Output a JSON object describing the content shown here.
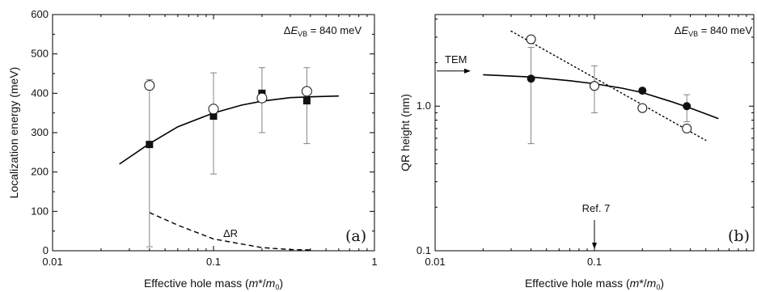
{
  "chart_data": [
    {
      "type": "scatter",
      "panel_label": "(a)",
      "xlabel": {
        "pre": "Effective hole mass  (",
        "m": "m",
        "star": "*/",
        "m0": "m",
        "sub": "0",
        "post": ")"
      },
      "ylabel": "Localization energy  (meV)",
      "xscale": "log",
      "xlim": [
        0.01,
        1
      ],
      "ylim": [
        0,
        600
      ],
      "xticks": [
        {
          "value": 0.01,
          "label": "0.01"
        },
        {
          "value": 0.1,
          "label": "0.1"
        },
        {
          "value": 1,
          "label": "1"
        }
      ],
      "yticks": [
        {
          "value": 0,
          "label": "0"
        },
        {
          "value": 100,
          "label": "100"
        },
        {
          "value": 200,
          "label": "200"
        },
        {
          "value": 300,
          "label": "300"
        },
        {
          "value": 400,
          "label": "400"
        },
        {
          "value": 500,
          "label": "500"
        },
        {
          "value": 600,
          "label": "600"
        }
      ],
      "annotation": {
        "pre": "Δ",
        "E": "E",
        "sub": "VB",
        "post": " = 840 meV"
      },
      "dashed_label": "ΔR",
      "series": [
        {
          "marker": "filled-square",
          "points": [
            {
              "x": 0.04,
              "y": 270,
              "err": [
                10,
                435
              ]
            },
            {
              "x": 0.1,
              "y": 342,
              "err": [
                195,
                452
              ]
            },
            {
              "x": 0.2,
              "y": 400,
              "err": [
                300,
                465
              ]
            },
            {
              "x": 0.38,
              "y": 381,
              "err": [
                272,
                465
              ]
            }
          ]
        },
        {
          "marker": "open-circle",
          "points": [
            {
              "x": 0.04,
              "y": 420
            },
            {
              "x": 0.1,
              "y": 360
            },
            {
              "x": 0.2,
              "y": 388
            },
            {
              "x": 0.38,
              "y": 405
            }
          ]
        },
        {
          "style": "solid-line",
          "points": [
            [
              0.026,
              220
            ],
            [
              0.04,
              272
            ],
            [
              0.06,
              315
            ],
            [
              0.1,
              350
            ],
            [
              0.15,
              370
            ],
            [
              0.2,
              380
            ],
            [
              0.3,
              389
            ],
            [
              0.4,
              391
            ],
            [
              0.6,
              393
            ]
          ]
        },
        {
          "style": "dashed-line",
          "points": [
            [
              0.04,
              97
            ],
            [
              0.06,
              65
            ],
            [
              0.1,
              30
            ],
            [
              0.15,
              17
            ],
            [
              0.2,
              8
            ],
            [
              0.3,
              3
            ],
            [
              0.4,
              2
            ]
          ]
        }
      ]
    },
    {
      "type": "scatter",
      "panel_label": "(b)",
      "xlabel": {
        "pre": "Effective hole mass (",
        "m": "m",
        "star": "*/",
        "m0": "m",
        "sub": "0",
        "post": ")"
      },
      "ylabel": "QR height (nm)",
      "xscale": "log",
      "yscale": "log",
      "xlim": [
        0.01,
        1
      ],
      "ylim": [
        0.1,
        4.3
      ],
      "xticks": [
        {
          "value": 0.01,
          "label": "0.01"
        },
        {
          "value": 0.1,
          "label": "0.1"
        }
      ],
      "yticks": [
        {
          "value": 0.1,
          "label": "0.1"
        },
        {
          "value": 1,
          "label": "1.0"
        }
      ],
      "annotation": {
        "pre": "Δ",
        "E": "E",
        "sub": "VB",
        "post": " = 840 meV"
      },
      "tem_label": "TEM",
      "tem_value": 1.75,
      "ref_label": "Ref. 7",
      "ref_x": 0.1,
      "series": [
        {
          "marker": "filled-circle",
          "points": [
            {
              "x": 0.04,
              "y": 1.55,
              "err": [
                0.55,
                2.55
              ]
            },
            {
              "x": 0.1,
              "y": 1.4,
              "err": [
                0.9,
                1.9
              ]
            },
            {
              "x": 0.2,
              "y": 1.28
            },
            {
              "x": 0.38,
              "y": 1.0,
              "err": [
                0.78,
                1.2
              ]
            }
          ]
        },
        {
          "marker": "open-circle",
          "points": [
            {
              "x": 0.04,
              "y": 2.9
            },
            {
              "x": 0.1,
              "y": 1.38
            },
            {
              "x": 0.2,
              "y": 0.97
            },
            {
              "x": 0.38,
              "y": 0.7
            }
          ]
        },
        {
          "style": "solid-line",
          "points": [
            [
              0.02,
              1.65
            ],
            [
              0.04,
              1.59
            ],
            [
              0.07,
              1.5
            ],
            [
              0.1,
              1.43
            ],
            [
              0.15,
              1.33
            ],
            [
              0.2,
              1.24
            ],
            [
              0.3,
              1.08
            ],
            [
              0.4,
              0.97
            ],
            [
              0.6,
              0.82
            ]
          ]
        },
        {
          "style": "dotted-line",
          "points": [
            [
              0.03,
              3.3
            ],
            [
              0.5,
              0.58
            ]
          ]
        }
      ]
    }
  ]
}
